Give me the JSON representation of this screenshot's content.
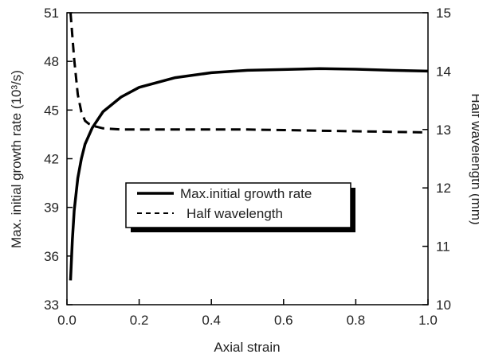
{
  "chart_data": {
    "type": "line",
    "xlabel": "Axial strain",
    "ylabel_left": "Max. initial growth rate (10³/s)",
    "ylabel_right": "Half wavelength (mm)",
    "xlim": [
      0.0,
      1.0
    ],
    "ylim_left": [
      33,
      51
    ],
    "ylim_right": [
      10,
      15
    ],
    "x_ticks": [
      "0.0",
      "0.2",
      "0.4",
      "0.6",
      "0.8",
      "1.0"
    ],
    "y_left_ticks": [
      "33",
      "36",
      "39",
      "42",
      "45",
      "48",
      "51"
    ],
    "y_right_ticks": [
      "10",
      "11",
      "12",
      "13",
      "14",
      "15"
    ],
    "grid": false,
    "legend_position": "center-left",
    "series": [
      {
        "name": "Max.initial growth rate",
        "axis": "left",
        "style": "solid",
        "color": "#000000",
        "x": [
          0.01,
          0.015,
          0.02,
          0.03,
          0.04,
          0.05,
          0.07,
          0.1,
          0.15,
          0.2,
          0.3,
          0.4,
          0.5,
          0.6,
          0.7,
          0.8,
          0.9,
          1.0
        ],
        "y": [
          34.5,
          37.0,
          38.8,
          40.8,
          42.0,
          42.9,
          43.9,
          44.9,
          45.8,
          46.4,
          47.0,
          47.3,
          47.45,
          47.5,
          47.55,
          47.52,
          47.45,
          47.4
        ]
      },
      {
        "name": "Half wavelength",
        "axis": "right",
        "style": "dashed",
        "color": "#000000",
        "x": [
          0.01,
          0.015,
          0.02,
          0.03,
          0.04,
          0.05,
          0.06,
          0.08,
          0.1,
          0.15,
          0.2,
          0.3,
          0.4,
          0.5,
          0.6,
          0.7,
          0.8,
          0.9,
          1.0
        ],
        "y": [
          15.0,
          14.6,
          14.2,
          13.6,
          13.3,
          13.15,
          13.1,
          13.05,
          13.02,
          13.0,
          13.0,
          13.0,
          13.0,
          13.0,
          12.99,
          12.98,
          12.97,
          12.96,
          12.95
        ]
      }
    ]
  }
}
